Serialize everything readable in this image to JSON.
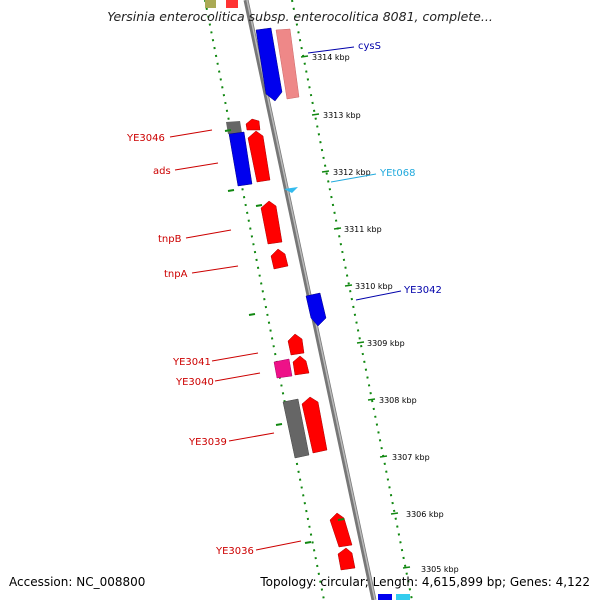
{
  "title": "Yersinia enterocolitica subsp. enterocolitica 8081, complete...",
  "footer": {
    "accession": "Accession: NC_008800",
    "summary": "Topology: circular; Length: 4,615,899 bp; Genes: 4,122"
  },
  "scale_labels": [
    "3314 kbp",
    "3313 kbp",
    "3312 kbp",
    "3311 kbp",
    "3310 kbp",
    "3309 kbp",
    "3308 kbp",
    "3307 kbp",
    "3306 kbp",
    "3305 kbp"
  ],
  "gene_labels": {
    "left": [
      "YE3046",
      "ads",
      "tnpB",
      "tnpA",
      "YE3041",
      "YE3040",
      "YE3039",
      "YE3036"
    ],
    "right": [
      "cysS",
      "YEt068",
      "YE3042"
    ]
  },
  "colors": {
    "cds_forward": "#ff0000",
    "cds_reverse": "#0000ff",
    "trna": "#33bbee",
    "pseudo": "#666666",
    "other": "#ee1188",
    "label_left": "#cc0000",
    "label_right_blue": "#0000aa",
    "label_trna": "#22aadd",
    "tick_green": "#118811"
  }
}
